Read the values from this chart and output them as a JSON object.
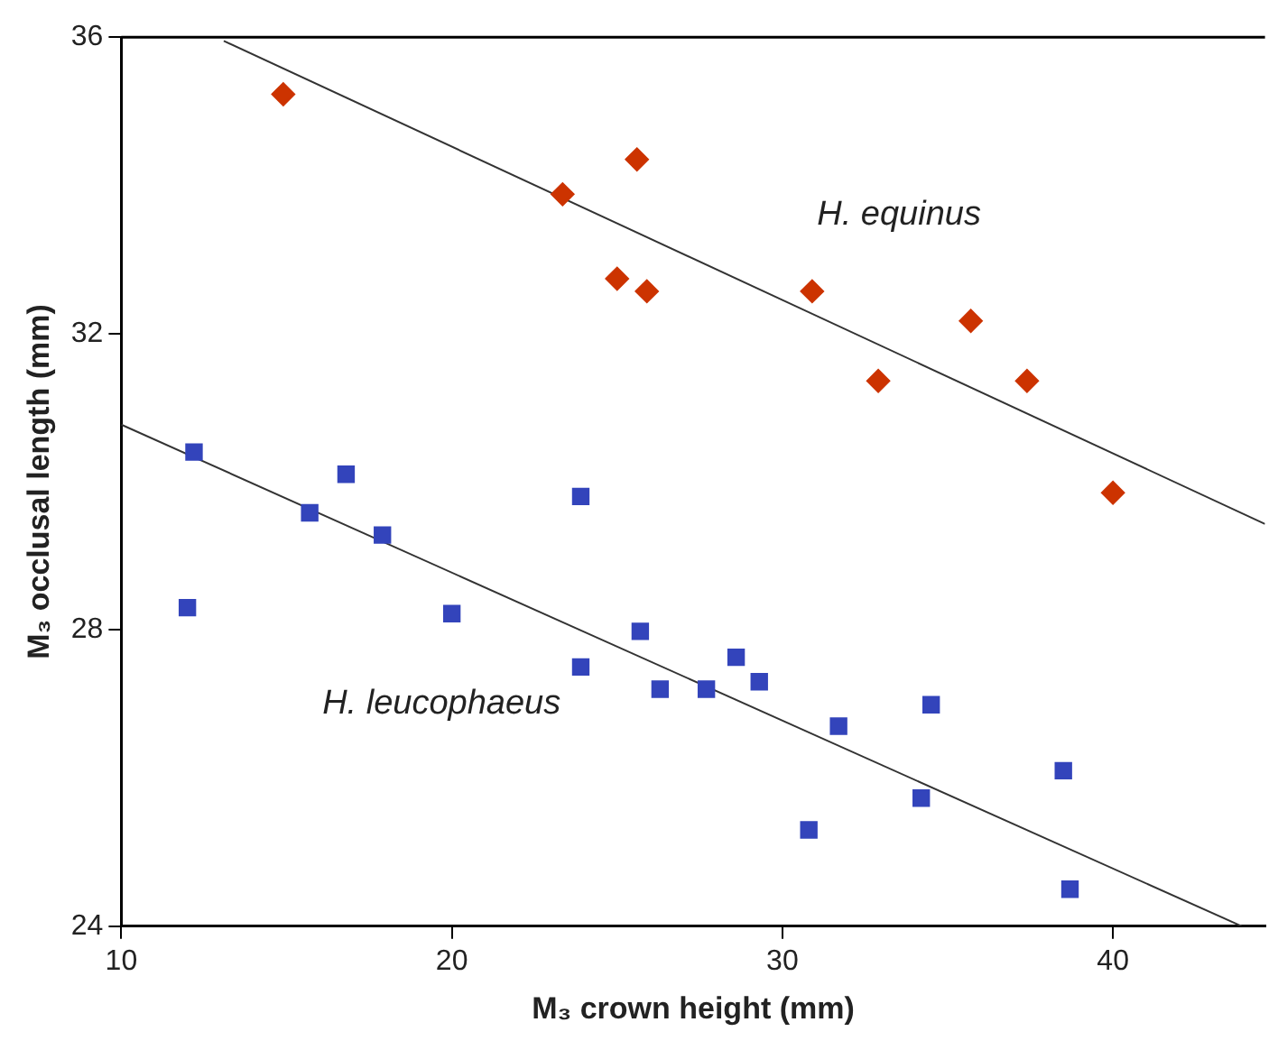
{
  "chart_data": {
    "type": "scatter",
    "xlabel": "M₃ crown height (mm)",
    "ylabel": "M₃ occlusal length (mm)",
    "xlim": [
      10,
      44.6
    ],
    "ylim": [
      24,
      36
    ],
    "xticks": [
      10,
      20,
      30,
      40
    ],
    "yticks": [
      24,
      28,
      32,
      36
    ],
    "grid": false,
    "legend": false,
    "annotations": [
      "H. equinus",
      "H. leucophaeus"
    ],
    "series": [
      {
        "color": "#cc3300",
        "marker": "diamond",
        "x": [
          14.9,
          23.35,
          25.6,
          25.9,
          30.9,
          32.9,
          35.7,
          37.4,
          40.0
        ],
        "values": [
          35.23,
          33.88,
          34.35,
          32.57,
          32.57,
          31.36,
          32.17,
          31.36,
          29.85
        ]
      },
      {
        "color": "#cc3300",
        "marker": "diamond",
        "x": [
          25.0
        ],
        "values": [
          32.74
        ]
      },
      {
        "color": "#3344bb",
        "marker": "square",
        "x": [
          12.2,
          16.8,
          17.9,
          12.0,
          20.0,
          23.9,
          25.7,
          23.9,
          26.3,
          27.7,
          31.7,
          30.8,
          38.5,
          38.7
        ],
        "values": [
          30.4,
          30.1,
          29.28,
          28.3,
          28.22,
          29.8,
          27.98,
          27.5,
          27.2,
          27.2,
          26.7,
          25.3,
          26.1,
          24.5
        ]
      },
      {
        "color": "#3344bb",
        "marker": "square",
        "x": [
          15.7,
          28.6,
          29.3,
          34.5,
          34.2
        ],
        "values": [
          29.58,
          27.63,
          27.3,
          26.99,
          25.73
        ]
      },
      {
        "type": "line",
        "color": "#333333",
        "marker": "none",
        "x": [
          13.1,
          44.6
        ],
        "values": [
          35.95,
          29.43
        ]
      },
      {
        "type": "line",
        "color": "#333333",
        "marker": "none",
        "x": [
          10,
          43.9
        ],
        "values": [
          30.77,
          24.0
        ]
      }
    ]
  }
}
